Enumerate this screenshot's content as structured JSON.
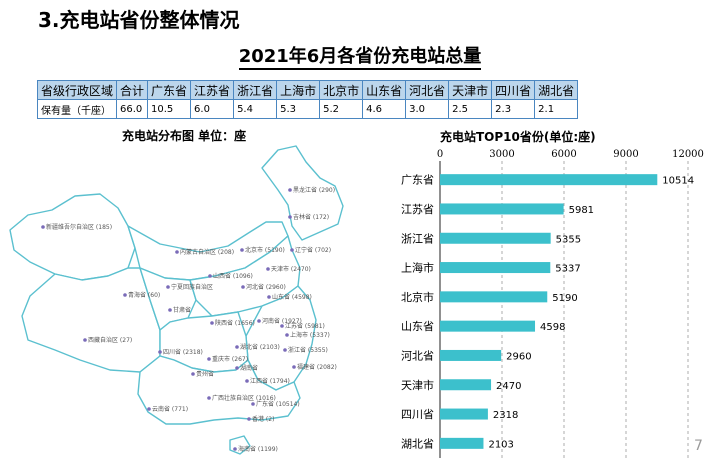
{
  "section_title": "3.充电站省份整体情况",
  "main_title": "2021年6月各省份充电站总量",
  "table": {
    "header": [
      "省级行政区域",
      "合计",
      "广东省",
      "江苏省",
      "浙江省",
      "上海市",
      "北京市",
      "山东省",
      "河北省",
      "天津市",
      "四川省",
      "湖北省"
    ],
    "values": [
      "保有量（千座）",
      "66.0",
      "10.5",
      "6.0",
      "5.4",
      "5.3",
      "5.2",
      "4.6",
      "3.0",
      "2.5",
      "2.3",
      "2.1"
    ]
  },
  "map": {
    "title": "充电站分布图  单位：座",
    "colors": {
      "fill": "#ffffff",
      "stroke": "#5bc0cf",
      "dot": "#7a6bb8"
    },
    "labels": [
      {
        "text": "黑龙江省 (290)"
      },
      {
        "text": "吉林省 (172)"
      },
      {
        "text": "新疆维吾尔自治区 (185)"
      },
      {
        "text": "内蒙古自治区 (208)"
      },
      {
        "text": "北京市 (5190)"
      },
      {
        "text": "辽宁省 (702)"
      },
      {
        "text": "天津市 (2470)"
      },
      {
        "text": "山西省 (1096)"
      },
      {
        "text": "河北省 (2960)"
      },
      {
        "text": "宁夏回族自治区"
      },
      {
        "text": "青海省 (60)"
      },
      {
        "text": "山东省 (4598)"
      },
      {
        "text": "甘肃省"
      },
      {
        "text": "陕西省 (1656)"
      },
      {
        "text": "河南省 (1927)"
      },
      {
        "text": "江苏省 (5981)"
      },
      {
        "text": "上海市 (5337)"
      },
      {
        "text": "西藏自治区 (27)"
      },
      {
        "text": "湖北省 (2103)"
      },
      {
        "text": "浙江省 (5355)"
      },
      {
        "text": "四川省 (2318)"
      },
      {
        "text": "重庆市 (267)"
      },
      {
        "text": "贵州省"
      },
      {
        "text": "湖南省"
      },
      {
        "text": "江西省 (1794)"
      },
      {
        "text": "福建省 (2082)"
      },
      {
        "text": "云南省 (771)"
      },
      {
        "text": "广西壮族自治区 (1016)"
      },
      {
        "text": "广东省 (10514)"
      },
      {
        "text": "香港 (2)"
      },
      {
        "text": "海南省 (1199)"
      }
    ]
  },
  "chart_data": {
    "type": "bar",
    "orientation": "horizontal",
    "title": "充电站TOP10省份(单位:座)",
    "categories": [
      "广东省",
      "江苏省",
      "浙江省",
      "上海市",
      "北京市",
      "山东省",
      "河北省",
      "天津市",
      "四川省",
      "湖北省"
    ],
    "values": [
      10514,
      5981,
      5355,
      5337,
      5190,
      4598,
      2960,
      2470,
      2318,
      2103
    ],
    "xlim": [
      0,
      12000
    ],
    "ticks": [
      "0",
      "3000",
      "6000",
      "9000",
      "12000"
    ],
    "tick_values": [
      0,
      3000,
      6000,
      9000,
      12000
    ],
    "grid": true,
    "bar_color": "#3cc0cc"
  },
  "page_number": "7"
}
